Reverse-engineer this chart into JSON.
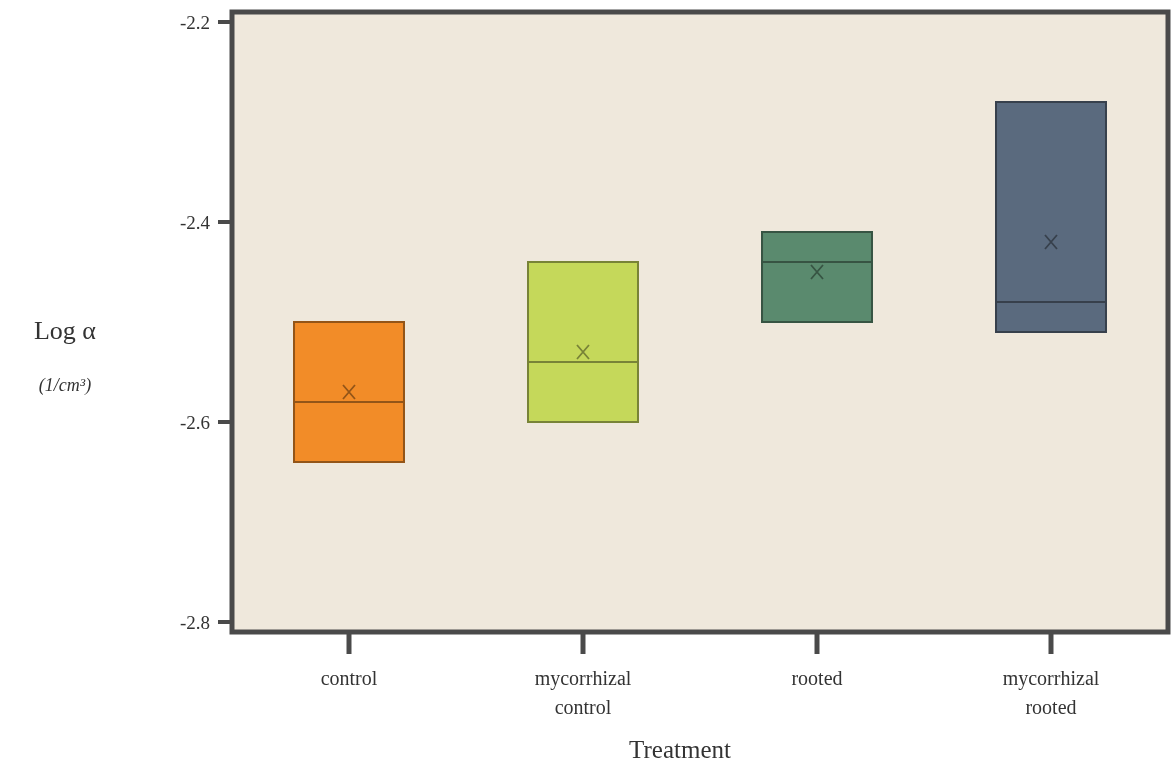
{
  "chart_data": {
    "type": "box",
    "xlabel": "Treatment",
    "ylabel": "Log α\n(1/cm³)",
    "categories": [
      "control",
      "mycorrhizal control",
      "rooted",
      "mycorrhizal rooted"
    ],
    "boxes": [
      {
        "low": -2.64,
        "q1": -2.64,
        "median": -2.58,
        "q3": -2.5,
        "high": -2.5,
        "mean": -2.57
      },
      {
        "low": -2.6,
        "q1": -2.6,
        "median": -2.54,
        "q3": -2.44,
        "high": -2.44,
        "mean": -2.53
      },
      {
        "low": -2.5,
        "q1": -2.5,
        "median": -2.44,
        "q3": -2.41,
        "high": -2.41,
        "mean": -2.45
      },
      {
        "low": -2.51,
        "q1": -2.51,
        "median": -2.48,
        "q3": -2.28,
        "high": -2.28,
        "mean": -2.42
      }
    ],
    "colors": [
      "#f28c28",
      "#c5d85a",
      "#5a8a6e",
      "#5a6a7e"
    ],
    "marker": "cross",
    "ylim": [
      -2.81,
      -2.19
    ],
    "yticks": [
      -2.2,
      -2.4,
      -2.6,
      -2.8
    ],
    "grid": false
  }
}
